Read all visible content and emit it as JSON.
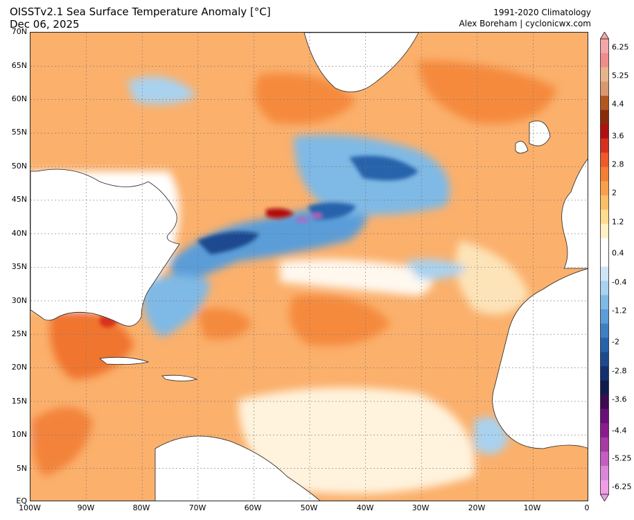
{
  "header": {
    "title_line1": "OISSTv2.1 Sea Surface Temperature Anomaly [°C]",
    "title_line2": "Dec 06, 2025",
    "credit_line1": "1991-2020 Climatology",
    "credit_line2": "Alex Boreham | cyclonicwx.com"
  },
  "axes": {
    "lat_labels": [
      "70N",
      "65N",
      "60N",
      "55N",
      "50N",
      "45N",
      "40N",
      "35N",
      "30N",
      "25N",
      "20N",
      "15N",
      "10N",
      "5N",
      "EQ"
    ],
    "lon_labels": [
      "100W",
      "90W",
      "80W",
      "70W",
      "60W",
      "50W",
      "40W",
      "30W",
      "20W",
      "10W",
      "0"
    ]
  },
  "colorbar": {
    "labels": [
      "6.25",
      "5.25",
      "4.4",
      "3.6",
      "2.8",
      "2",
      "1.2",
      "0.4",
      "-0.4",
      "-1.2",
      "-2",
      "-2.8",
      "-3.6",
      "-4.4",
      "-5.25",
      "-6.25"
    ],
    "colors": [
      "#f4a6a6",
      "#f08c8c",
      "#e6b48c",
      "#d99870",
      "#b3561f",
      "#8c2b0a",
      "#b01010",
      "#d7301f",
      "#ef5a28",
      "#f47f33",
      "#f9a04c",
      "#fbbf67",
      "#fddc8e",
      "#fff1c4",
      "#ffffff",
      "#ffffff",
      "#cfe6f6",
      "#a9d2ef",
      "#7fb9e5",
      "#5a9dd8",
      "#3d80c4",
      "#2763ac",
      "#1d4a8f",
      "#152f6e",
      "#0e1b4b",
      "#3d0a52",
      "#6a0f78",
      "#8b1a8f",
      "#a83aa5",
      "#c45ec0",
      "#dc86d8",
      "#ef9de6"
    ],
    "units": "°C"
  }
}
